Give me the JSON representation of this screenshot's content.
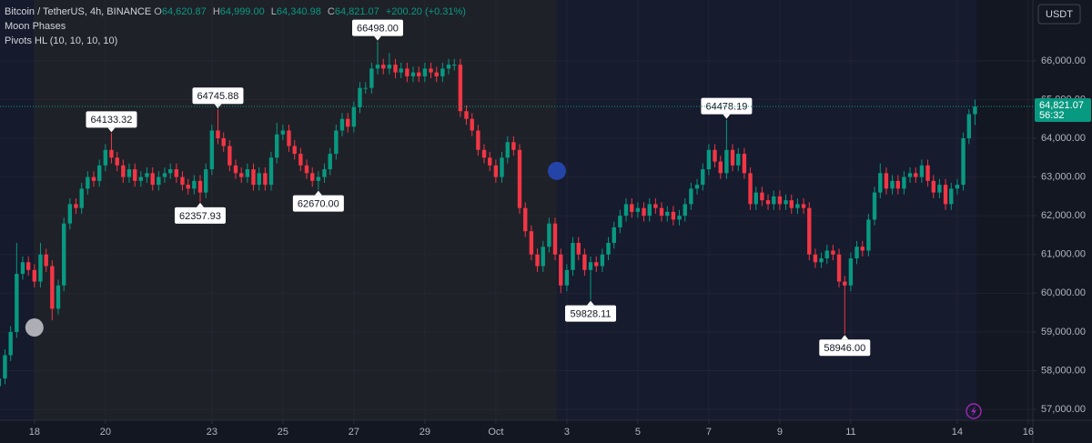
{
  "header": {
    "symbol": "Bitcoin / TetherUS, 4h, BINANCE",
    "ohlc": [
      {
        "key": "O",
        "value": "64,620.87"
      },
      {
        "key": "H",
        "value": "64,999.00"
      },
      {
        "key": "L",
        "value": "64,340.98"
      },
      {
        "key": "C",
        "value": "64,821.07"
      }
    ],
    "change": "+200.20 (+0.31%)",
    "indicators": [
      "Moon Phases",
      "Pivots HL (10, 10, 10, 10)"
    ]
  },
  "currency": "USDT",
  "chart_data": {
    "type": "candlestick",
    "x": [
      17,
      17.17,
      17.33,
      17.5,
      17.67,
      17.83,
      18,
      18.17,
      18.33,
      18.5,
      18.67,
      18.83,
      19,
      19.17,
      19.33,
      19.5,
      19.67,
      19.83,
      20,
      20.17,
      20.33,
      20.5,
      20.67,
      20.83,
      21,
      21.17,
      21.33,
      21.5,
      21.67,
      21.83,
      22,
      22.17,
      22.33,
      22.5,
      22.67,
      22.83,
      23,
      23.17,
      23.33,
      23.5,
      23.67,
      23.83,
      24,
      24.17,
      24.33,
      24.5,
      24.67,
      24.83,
      25,
      25.17,
      25.33,
      25.5,
      25.67,
      25.83,
      26,
      26.17,
      26.33,
      26.5,
      26.67,
      26.83,
      27,
      27.17,
      27.33,
      27.5,
      27.67,
      27.83,
      28,
      28.17,
      28.33,
      28.5,
      28.67,
      28.83,
      29,
      29.17,
      29.33,
      29.5,
      29.67,
      29.83,
      30,
      30.17,
      30.33,
      30.5,
      30.67,
      30.83,
      31,
      31.17,
      31.33,
      31.5,
      31.67,
      31.83,
      32,
      32.17,
      32.33,
      32.5,
      32.67,
      32.83,
      33,
      33.17,
      33.33,
      33.5,
      33.67,
      33.83,
      34,
      34.17,
      34.33,
      34.5,
      34.67,
      34.83,
      35,
      35.17,
      35.33,
      35.5,
      35.67,
      35.83,
      36,
      36.17,
      36.33,
      36.5,
      36.67,
      36.83,
      37,
      37.17,
      37.33,
      37.5,
      37.67,
      37.83,
      38,
      38.17,
      38.33,
      38.5,
      38.67,
      38.83,
      39,
      39.17,
      39.33,
      39.5,
      39.67,
      39.83,
      40,
      40.17,
      40.33,
      40.5,
      40.67,
      40.83,
      41,
      41.17,
      41.33,
      41.5,
      41.67,
      41.83,
      42,
      42.17,
      42.33,
      42.5,
      42.67,
      42.83,
      43,
      43.17,
      43.33,
      43.5,
      43.67,
      43.83,
      44,
      44.17,
      44.33,
      44.5
    ],
    "open": [
      57600,
      57800,
      58400,
      59000,
      60500,
      60800,
      60600,
      60300,
      61000,
      60700,
      59600,
      60200,
      61800,
      62300,
      62200,
      62700,
      63000,
      62900,
      63300,
      63700,
      63500,
      63300,
      63000,
      63200,
      62900,
      63000,
      63100,
      62800,
      63000,
      63100,
      63200,
      63000,
      62800,
      62700,
      62900,
      62600,
      63200,
      64200,
      64000,
      63800,
      63300,
      63100,
      63000,
      63200,
      62800,
      63100,
      62800,
      63500,
      64100,
      64200,
      63800,
      63600,
      63300,
      63100,
      62900,
      63000,
      63200,
      63600,
      64200,
      64500,
      64300,
      64800,
      65300,
      65300,
      65800,
      65900,
      65800,
      65900,
      65700,
      65800,
      65600,
      65700,
      65600,
      65800,
      65700,
      65600,
      65800,
      65900,
      65900,
      64700,
      64500,
      64200,
      63700,
      63500,
      63300,
      63000,
      63500,
      63900,
      63700,
      62200,
      61600,
      61000,
      60700,
      61200,
      61800,
      61000,
      60200,
      60600,
      61300,
      61000,
      60600,
      60800,
      60700,
      61000,
      61300,
      61700,
      62000,
      62300,
      62100,
      62200,
      62000,
      62300,
      62200,
      62000,
      62100,
      61900,
      62000,
      62300,
      62700,
      62800,
      63200,
      63700,
      63400,
      63100,
      63700,
      63300,
      63600,
      63100,
      62300,
      62600,
      62400,
      62300,
      62500,
      62300,
      62400,
      62200,
      62300,
      62200,
      61000,
      60800,
      60900,
      61100,
      61000,
      60300,
      60200,
      60900,
      61200,
      61100,
      61900,
      62600,
      63100,
      62700,
      62900,
      62700,
      63000,
      63100,
      63000,
      63300,
      62900,
      62600,
      62800,
      62300,
      62700,
      62800,
      64000,
      64620.87
    ],
    "high": [
      57950,
      58550,
      59150,
      61300,
      60950,
      60950,
      60750,
      61300,
      61150,
      60850,
      60350,
      61950,
      62450,
      62450,
      62850,
      63150,
      63150,
      63450,
      63850,
      64133.32,
      63650,
      63450,
      63350,
      63350,
      63150,
      63250,
      63250,
      63150,
      63250,
      63350,
      63350,
      63150,
      62950,
      63050,
      63050,
      63350,
      64350,
      64745.88,
      64150,
      63950,
      63450,
      63250,
      63350,
      63350,
      63250,
      63250,
      63650,
      64400,
      64350,
      64350,
      63950,
      63750,
      63450,
      63250,
      63150,
      63350,
      63750,
      64350,
      64650,
      64650,
      64950,
      65450,
      65450,
      65950,
      66498,
      66050,
      66200,
      66050,
      65950,
      65950,
      65850,
      65850,
      65950,
      65950,
      65850,
      65950,
      66050,
      66050,
      66050,
      64850,
      64650,
      64350,
      63850,
      63650,
      63450,
      63650,
      64050,
      64050,
      63850,
      62350,
      61750,
      61150,
      61350,
      61950,
      61950,
      61150,
      60750,
      61450,
      61450,
      61150,
      60950,
      60950,
      61150,
      61450,
      61850,
      62150,
      62450,
      62450,
      62350,
      62350,
      62450,
      62450,
      62350,
      62250,
      62250,
      62150,
      62450,
      62850,
      62950,
      63350,
      63850,
      63850,
      63550,
      64478.19,
      63850,
      63750,
      63750,
      63250,
      62750,
      62750,
      62550,
      62650,
      62650,
      62550,
      62550,
      62450,
      62450,
      62350,
      61150,
      61050,
      61250,
      61250,
      61150,
      60450,
      61050,
      61350,
      61350,
      62050,
      62750,
      63350,
      63250,
      63050,
      63050,
      63150,
      63250,
      63250,
      63450,
      63450,
      63050,
      62950,
      62950,
      62850,
      62950,
      64150,
      64750,
      64999
    ],
    "low": [
      57450,
      57650,
      58250,
      58850,
      60350,
      60450,
      60150,
      60150,
      60550,
      59300,
      59450,
      60050,
      61650,
      62050,
      62050,
      62550,
      62750,
      62750,
      63150,
      63350,
      63150,
      62850,
      62850,
      62750,
      62750,
      62850,
      62650,
      62650,
      62850,
      62950,
      62850,
      62650,
      62550,
      62550,
      62357.93,
      62450,
      63050,
      63850,
      63650,
      63150,
      62950,
      62850,
      62850,
      62650,
      62650,
      62650,
      62650,
      63350,
      63950,
      63650,
      63450,
      63150,
      62950,
      62750,
      62670,
      62850,
      63050,
      63450,
      64050,
      64150,
      64150,
      64650,
      65150,
      65150,
      65650,
      65650,
      65650,
      65550,
      65550,
      65450,
      65450,
      65450,
      65450,
      65550,
      65450,
      65450,
      65650,
      65750,
      64550,
      64350,
      64050,
      63550,
      63350,
      63150,
      62850,
      62850,
      63350,
      63550,
      62050,
      61450,
      60850,
      60550,
      60550,
      61050,
      60850,
      60000,
      60050,
      60450,
      60850,
      60450,
      59828.11,
      60550,
      60550,
      60850,
      61150,
      61550,
      61850,
      61950,
      61950,
      61850,
      61850,
      62050,
      61850,
      61850,
      61750,
      61750,
      61850,
      62150,
      62550,
      62650,
      63050,
      63250,
      62950,
      62950,
      63150,
      63150,
      62950,
      62150,
      62150,
      62250,
      62150,
      62150,
      62150,
      62150,
      62050,
      62050,
      62050,
      60850,
      60650,
      60650,
      60750,
      60850,
      60150,
      58946,
      60050,
      60750,
      60950,
      60950,
      61750,
      62450,
      62550,
      62550,
      62550,
      62550,
      62850,
      62850,
      62850,
      62750,
      62450,
      62450,
      62150,
      62150,
      62550,
      62650,
      63850,
      64340.98
    ],
    "close": [
      57800,
      58400,
      59000,
      60500,
      60800,
      60600,
      60300,
      61000,
      60700,
      59600,
      60200,
      61800,
      62300,
      62200,
      62700,
      63000,
      62900,
      63300,
      63700,
      63500,
      63300,
      63000,
      63200,
      62900,
      63000,
      63100,
      62800,
      63000,
      63100,
      63200,
      63000,
      62800,
      62700,
      62900,
      62600,
      63200,
      64200,
      64000,
      63800,
      63300,
      63100,
      63000,
      63200,
      62800,
      63100,
      62800,
      63500,
      64100,
      64200,
      63800,
      63600,
      63300,
      63100,
      62900,
      63000,
      63200,
      63600,
      64200,
      64500,
      64300,
      64800,
      65300,
      65300,
      65800,
      65900,
      65800,
      65900,
      65700,
      65800,
      65600,
      65700,
      65600,
      65800,
      65700,
      65600,
      65800,
      65900,
      65900,
      64700,
      64500,
      64200,
      63700,
      63500,
      63300,
      63000,
      63500,
      63900,
      63700,
      62200,
      61600,
      61000,
      60700,
      61200,
      61800,
      61000,
      60200,
      60600,
      61300,
      61000,
      60600,
      60800,
      60700,
      61000,
      61300,
      61700,
      62000,
      62300,
      62100,
      62200,
      62000,
      62300,
      62200,
      62000,
      62100,
      61900,
      62000,
      62300,
      62700,
      62800,
      63200,
      63700,
      63400,
      63100,
      63700,
      63300,
      63600,
      63100,
      62300,
      62600,
      62400,
      62300,
      62500,
      62300,
      62400,
      62200,
      62300,
      62200,
      61000,
      60800,
      60900,
      61100,
      61000,
      60300,
      60200,
      60900,
      61200,
      61100,
      61900,
      62600,
      63100,
      62700,
      62900,
      62700,
      63000,
      63100,
      63000,
      63300,
      62900,
      62600,
      62800,
      62300,
      62700,
      62800,
      64000,
      64620.87,
      64821.07
    ],
    "up_color": "#089981",
    "down_color": "#f23645",
    "xlim": [
      17.03,
      46.13
    ],
    "xticks": [
      18,
      20,
      23,
      25,
      27,
      29,
      {
        "value": 31,
        "label": "Oct"
      },
      {
        "value": 33,
        "label": "3"
      },
      {
        "value": 35,
        "label": "5"
      },
      {
        "value": 37,
        "label": "7"
      },
      {
        "value": 39,
        "label": "9"
      },
      {
        "value": 41,
        "label": "11"
      },
      {
        "value": 44,
        "label": "14"
      },
      {
        "value": 46,
        "label": "16"
      }
    ],
    "ylim": [
      56720,
      67570
    ],
    "yticks": [
      {
        "value": 57000,
        "label": "57,000.00"
      },
      {
        "value": 58000,
        "label": "58,000.00"
      },
      {
        "value": 59000,
        "label": "59,000.00"
      },
      {
        "value": 60000,
        "label": "60,000.00"
      },
      {
        "value": 61000,
        "label": "61,000.00"
      },
      {
        "value": 62000,
        "label": "62,000.00"
      },
      {
        "value": 63000,
        "label": "63,000.00"
      },
      {
        "value": 64000,
        "label": "64,000.00"
      },
      {
        "value": 65000,
        "label": "65,000.00"
      },
      {
        "value": 66000,
        "label": "66,000.00"
      }
    ],
    "grid": true,
    "pivots": [
      {
        "x": 20.17,
        "value": 64133.32,
        "label": "64133.32",
        "kind": "high"
      },
      {
        "x": 22.67,
        "value": 62357.93,
        "label": "62357.93",
        "kind": "low"
      },
      {
        "x": 23.17,
        "value": 64745.88,
        "label": "64745.88",
        "kind": "high"
      },
      {
        "x": 26,
        "value": 62670,
        "label": "62670.00",
        "kind": "low"
      },
      {
        "x": 27.67,
        "value": 66498,
        "label": "66498.00",
        "kind": "high"
      },
      {
        "x": 33.67,
        "value": 59828.11,
        "label": "59828.11",
        "kind": "low"
      },
      {
        "x": 37.5,
        "value": 64478.19,
        "label": "64478.19",
        "kind": "high"
      },
      {
        "x": 40.83,
        "value": 58946,
        "label": "58946.00",
        "kind": "low"
      }
    ],
    "moon_phases": [
      {
        "x": 18,
        "y": 59115,
        "phase": "full"
      },
      {
        "x": 32.72,
        "y": 63157,
        "phase": "new"
      }
    ],
    "last_price": {
      "value": 64821.07,
      "label": "64,821.07",
      "countdown": "56:32"
    }
  }
}
